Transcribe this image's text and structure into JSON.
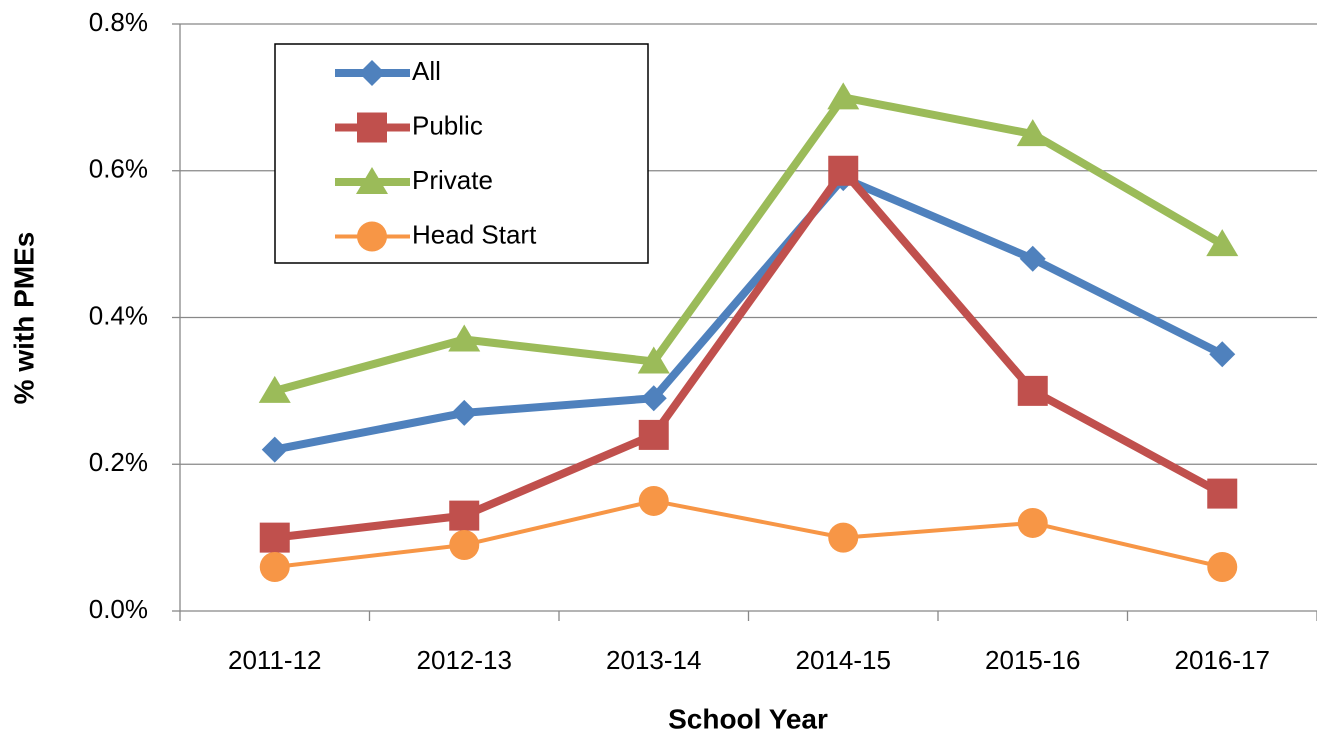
{
  "chart_data": {
    "type": "line",
    "x_label": "School Year",
    "y_label": "% with PMEs",
    "categories": [
      "2011-12",
      "2012-13",
      "2013-14",
      "2014-15",
      "2015-16",
      "2016-17"
    ],
    "series": [
      {
        "name": "All",
        "color": "#4f81bd",
        "marker": "diamond",
        "values": [
          0.22,
          0.27,
          0.29,
          0.59,
          0.48,
          0.35
        ]
      },
      {
        "name": "Public",
        "color": "#c0504d",
        "marker": "square",
        "values": [
          0.1,
          0.13,
          0.24,
          0.6,
          0.3,
          0.16
        ]
      },
      {
        "name": "Private",
        "color": "#9bbb59",
        "marker": "triangle",
        "values": [
          0.3,
          0.37,
          0.34,
          0.7,
          0.65,
          0.5
        ]
      },
      {
        "name": "Head Start",
        "color": "#f79646",
        "marker": "circle",
        "values": [
          0.06,
          0.09,
          0.15,
          0.1,
          0.12,
          0.06
        ]
      }
    ],
    "ylim": [
      0,
      0.8
    ],
    "yticks": [
      {
        "value": 0,
        "label": "0.0%"
      },
      {
        "value": 0.2,
        "label": "0.2%"
      },
      {
        "value": 0.4,
        "label": "0.4%"
      },
      {
        "value": 0.6,
        "label": "0.6%"
      },
      {
        "value": 0.8,
        "label": "0.8%"
      }
    ],
    "grid": true,
    "legend": "upper left"
  }
}
